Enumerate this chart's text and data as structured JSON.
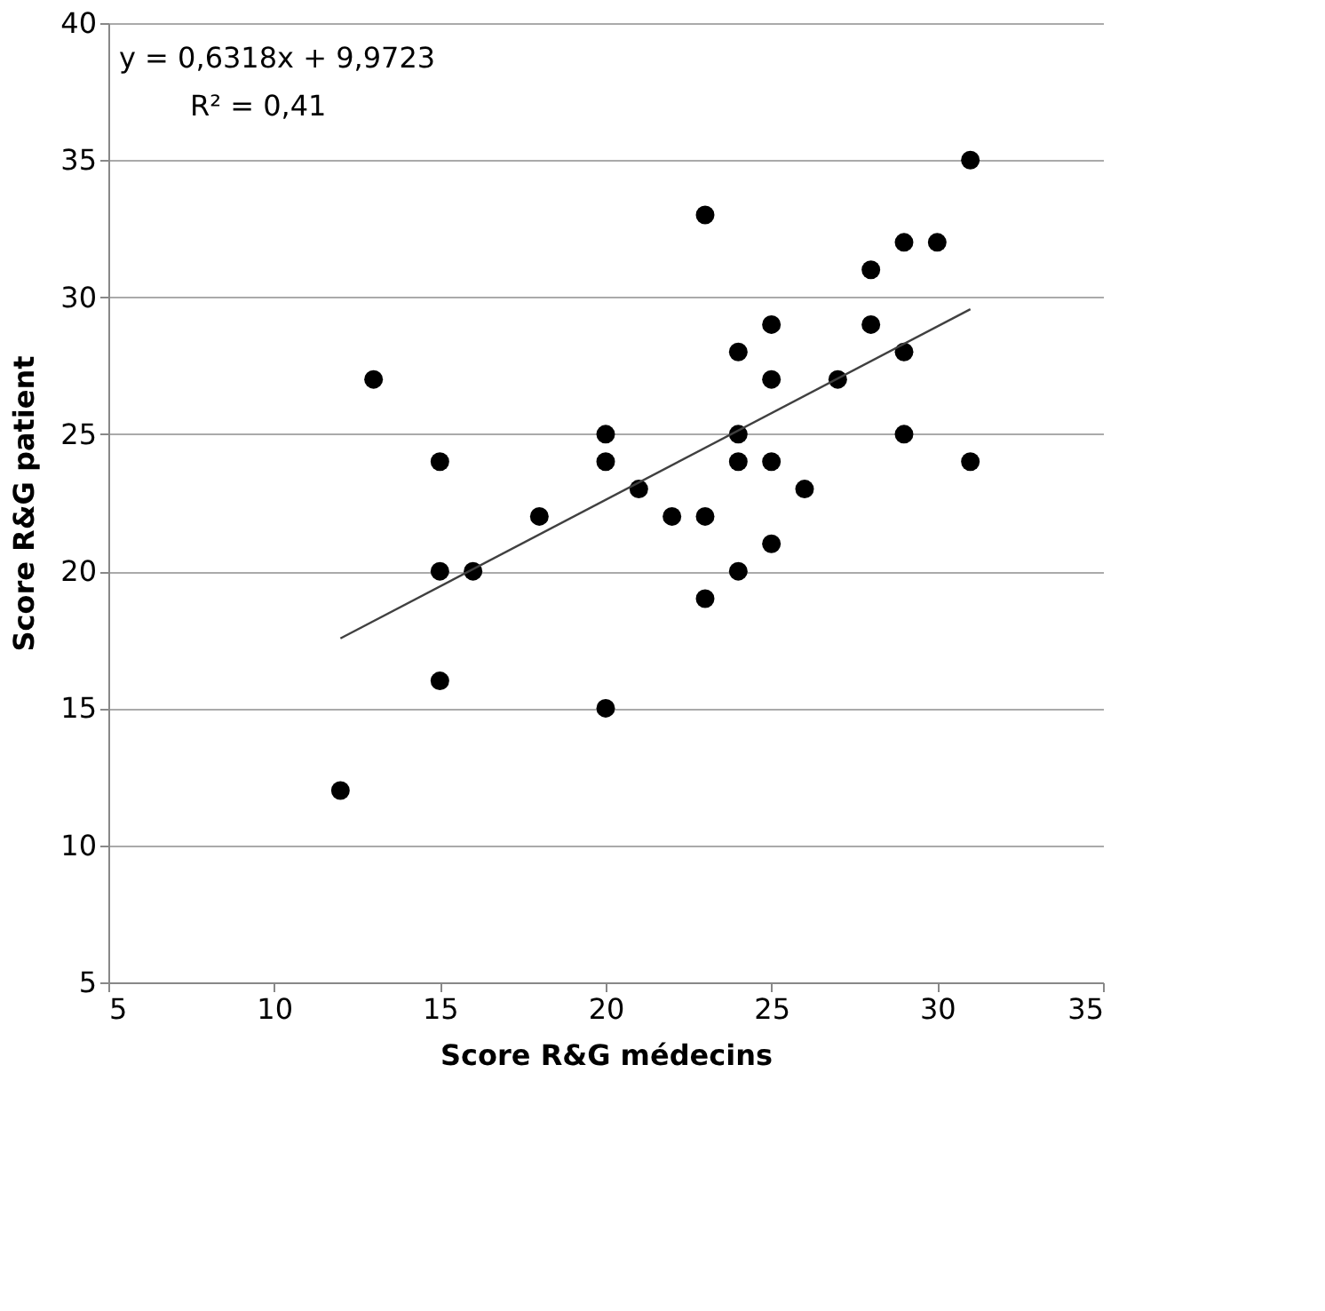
{
  "chart_data": {
    "type": "scatter",
    "xlabel": "Score R&G médecins",
    "ylabel": "Score R&G patient",
    "annotations": [
      "y = 0,6318x + 9,9723",
      "R² = 0,41"
    ],
    "xlim": [
      5,
      35
    ],
    "xticks": [
      5,
      10,
      15,
      20,
      25,
      30,
      35
    ],
    "ylim": [
      5,
      40
    ],
    "yticks": [
      5,
      10,
      15,
      20,
      25,
      30,
      35,
      40
    ],
    "grid": "y",
    "marker": "circle",
    "series": [
      {
        "color": "#000000",
        "x": [
          12,
          13,
          15,
          15,
          15,
          16,
          18,
          20,
          20,
          20,
          21,
          22,
          23,
          23,
          23,
          24,
          24,
          24,
          24,
          25,
          25,
          25,
          25,
          26,
          27,
          28,
          28,
          29,
          29,
          29,
          30,
          31,
          31
        ],
        "values": [
          12,
          27,
          24,
          20,
          16,
          20,
          22,
          25,
          24,
          15,
          23,
          22,
          33,
          22,
          19,
          28,
          25,
          24,
          20,
          29,
          27,
          24,
          21,
          23,
          27,
          31,
          29,
          32,
          28,
          25,
          32,
          35,
          24
        ]
      },
      {
        "type": "line",
        "color": "#404040",
        "marker": "none",
        "line_style": "solid",
        "x": [
          12,
          31
        ],
        "values": [
          17.55,
          29.56
        ]
      }
    ]
  }
}
